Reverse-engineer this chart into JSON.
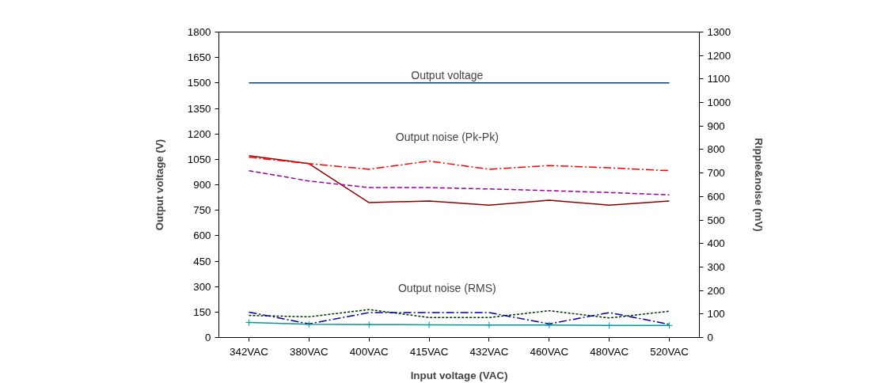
{
  "chart_data": {
    "type": "line",
    "xlabel": "Input voltage (VAC)",
    "ylabel": "Output voltage (V)",
    "y2label": "Ripple&noise (mV)",
    "categories": [
      "342VAC",
      "380VAC",
      "400VAC",
      "415VAC",
      "432VAC",
      "460VAC",
      "480VAC",
      "520VAC"
    ],
    "series": [
      {
        "color": "#003f7f",
        "line_style": "solid",
        "marker": "none",
        "values": [
          1500,
          1500,
          1500,
          1500,
          1500,
          1500,
          1500,
          1500
        ]
      },
      {
        "color": "#8b0000",
        "line_style": "solid",
        "marker": "none",
        "axis": "y2",
        "values": [
          774,
          740,
          574,
          581,
          563,
          584,
          563,
          581
        ]
      },
      {
        "color": "#ff0000",
        "line_style": "dashdot",
        "marker": "none",
        "axis": "y2",
        "values": [
          767,
          740,
          716,
          751,
          716,
          732,
          722,
          710
        ]
      },
      {
        "color": "#990099",
        "line_style": "dashed",
        "marker": "none",
        "axis": "y2",
        "values": [
          710,
          666,
          638,
          638,
          632,
          625,
          617,
          607
        ]
      },
      {
        "color": "#003300",
        "line_style": "dotted",
        "marker": "none",
        "axis": "y2",
        "values": [
          94,
          88,
          119,
          85,
          85,
          114,
          83,
          112
        ]
      },
      {
        "color": "#000099",
        "line_style": "dashdot",
        "marker": "none",
        "axis": "y2",
        "values": [
          108,
          58,
          106,
          106,
          106,
          58,
          106,
          56
        ]
      },
      {
        "color": "#009999",
        "line_style": "solid",
        "marker": "cross",
        "axis": "y2",
        "values": [
          64,
          56,
          55,
          54,
          53,
          53,
          51,
          51
        ]
      }
    ],
    "annotations": [
      "Output voltage",
      "Output noise (Pk-Pk)",
      "Output noise (RMS)"
    ],
    "ylim": [
      0,
      1800
    ],
    "yticks": [
      0,
      150,
      300,
      450,
      600,
      750,
      900,
      1050,
      1200,
      1350,
      1500,
      1650,
      1800
    ],
    "y2lim": [
      0,
      1300
    ],
    "y2ticks": [
      0,
      100,
      200,
      300,
      400,
      500,
      600,
      700,
      800,
      900,
      1000,
      1100,
      1200,
      1300
    ],
    "grid": false
  }
}
